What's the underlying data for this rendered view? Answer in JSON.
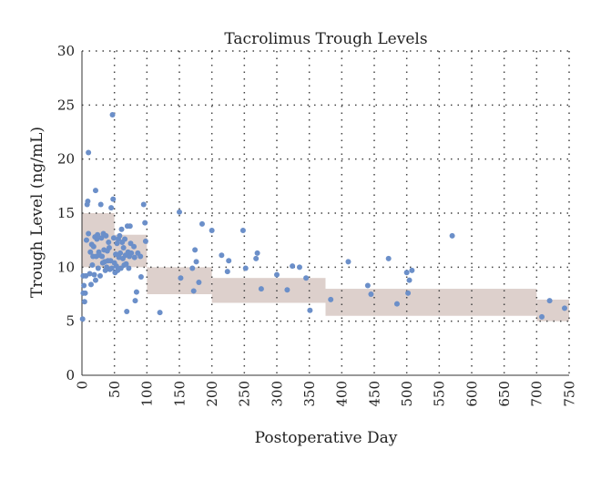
{
  "chart_data": {
    "type": "scatter",
    "title": "Tacrolimus Trough Levels",
    "xlabel": "Postoperative Day",
    "ylabel": "Trough Level (ng/mL)",
    "xlim": [
      0,
      750
    ],
    "ylim": [
      0,
      30
    ],
    "x_ticks": [
      0,
      50,
      100,
      150,
      200,
      250,
      300,
      350,
      400,
      450,
      500,
      550,
      600,
      650,
      700,
      750
    ],
    "y_ticks": [
      0,
      5,
      10,
      15,
      20,
      25,
      30
    ],
    "x_tick_labels": [
      "0",
      "50",
      "100",
      "150",
      "200",
      "250",
      "300",
      "350",
      "400",
      "450",
      "500",
      "550",
      "600",
      "650",
      "700",
      "750"
    ],
    "y_tick_labels": [
      "0",
      "5",
      "10",
      "15",
      "20",
      "25",
      "30"
    ],
    "grid": "dotted",
    "colors": {
      "points": "#6b8fc9",
      "target_bands": "#ddd0cc",
      "grid": "#444444"
    },
    "target_bands": [
      {
        "x0": 0,
        "x1": 50,
        "y0": 10,
        "y1": 15
      },
      {
        "x0": 50,
        "x1": 100,
        "y0": 10,
        "y1": 13
      },
      {
        "x0": 100,
        "x1": 200,
        "y0": 7.5,
        "y1": 10
      },
      {
        "x0": 200,
        "x1": 375,
        "y0": 6.7,
        "y1": 9
      },
      {
        "x0": 375,
        "x1": 700,
        "y0": 5.5,
        "y1": 8
      },
      {
        "x0": 700,
        "x1": 750,
        "y0": 5,
        "y1": 7
      }
    ],
    "points": [
      [
        1,
        5.2
      ],
      [
        2,
        7.6
      ],
      [
        2,
        9.2
      ],
      [
        3,
        8.3
      ],
      [
        4,
        6.8
      ],
      [
        5,
        7.6
      ],
      [
        6,
        9.2
      ],
      [
        7,
        12.5
      ],
      [
        8,
        15.8
      ],
      [
        9,
        16.1
      ],
      [
        10,
        20.6
      ],
      [
        10,
        13.1
      ],
      [
        12,
        9.4
      ],
      [
        13,
        11.4
      ],
      [
        14,
        8.4
      ],
      [
        15,
        12.1
      ],
      [
        16,
        10.2
      ],
      [
        17,
        11.0
      ],
      [
        18,
        11.9
      ],
      [
        19,
        9.3
      ],
      [
        20,
        12.8
      ],
      [
        21,
        17.1
      ],
      [
        21,
        8.8
      ],
      [
        22,
        11.0
      ],
      [
        23,
        12.6
      ],
      [
        24,
        13.0
      ],
      [
        25,
        9.9
      ],
      [
        26,
        11.4
      ],
      [
        27,
        11.1
      ],
      [
        28,
        9.2
      ],
      [
        29,
        15.8
      ],
      [
        30,
        12.7
      ],
      [
        31,
        11.0
      ],
      [
        32,
        10.4
      ],
      [
        33,
        13.1
      ],
      [
        34,
        11.6
      ],
      [
        35,
        10.5
      ],
      [
        36,
        9.7
      ],
      [
        37,
        12.9
      ],
      [
        38,
        10.0
      ],
      [
        39,
        11.5
      ],
      [
        40,
        10.6
      ],
      [
        41,
        12.3
      ],
      [
        42,
        11.8
      ],
      [
        43,
        9.8
      ],
      [
        44,
        10.6
      ],
      [
        45,
        15.5
      ],
      [
        46,
        9.9
      ],
      [
        47,
        24.1
      ],
      [
        48,
        16.3
      ],
      [
        49,
        12.7
      ],
      [
        50,
        10.4
      ],
      [
        51,
        9.5
      ],
      [
        52,
        11.2
      ],
      [
        53,
        10.1
      ],
      [
        54,
        12.2
      ],
      [
        55,
        9.7
      ],
      [
        56,
        12.6
      ],
      [
        57,
        10.9
      ],
      [
        58,
        12.9
      ],
      [
        59,
        11.3
      ],
      [
        60,
        9.9
      ],
      [
        61,
        13.5
      ],
      [
        62,
        12.3
      ],
      [
        63,
        10.8
      ],
      [
        64,
        11.8
      ],
      [
        65,
        10.2
      ],
      [
        66,
        12.6
      ],
      [
        67,
        11.1
      ],
      [
        68,
        10.3
      ],
      [
        69,
        5.9
      ],
      [
        70,
        13.8
      ],
      [
        71,
        11.4
      ],
      [
        72,
        9.9
      ],
      [
        73,
        11.0
      ],
      [
        74,
        13.8
      ],
      [
        75,
        12.2
      ],
      [
        76,
        11.3
      ],
      [
        80,
        11.9
      ],
      [
        81,
        10.9
      ],
      [
        82,
        6.9
      ],
      [
        84,
        7.7
      ],
      [
        86,
        11.3
      ],
      [
        90,
        11.0
      ],
      [
        91,
        9.1
      ],
      [
        95,
        15.8
      ],
      [
        97,
        14.1
      ],
      [
        98,
        12.4
      ],
      [
        120,
        5.8
      ],
      [
        150,
        15.1
      ],
      [
        152,
        9.0
      ],
      [
        170,
        9.9
      ],
      [
        172,
        7.8
      ],
      [
        174,
        11.6
      ],
      [
        176,
        10.5
      ],
      [
        180,
        8.6
      ],
      [
        185,
        14.0
      ],
      [
        200,
        13.4
      ],
      [
        215,
        11.1
      ],
      [
        224,
        9.6
      ],
      [
        226,
        10.6
      ],
      [
        248,
        13.4
      ],
      [
        252,
        9.9
      ],
      [
        268,
        10.8
      ],
      [
        270,
        11.3
      ],
      [
        276,
        8.0
      ],
      [
        300,
        9.3
      ],
      [
        316,
        7.9
      ],
      [
        324,
        10.1
      ],
      [
        335,
        10.0
      ],
      [
        345,
        9.0
      ],
      [
        351,
        6.0
      ],
      [
        383,
        7.0
      ],
      [
        410,
        10.5
      ],
      [
        440,
        8.3
      ],
      [
        445,
        7.5
      ],
      [
        472,
        10.8
      ],
      [
        485,
        6.6
      ],
      [
        500,
        9.5
      ],
      [
        502,
        7.6
      ],
      [
        504,
        8.8
      ],
      [
        508,
        9.7
      ],
      [
        570,
        12.9
      ],
      [
        708,
        5.4
      ],
      [
        720,
        6.9
      ],
      [
        743,
        6.2
      ]
    ]
  }
}
